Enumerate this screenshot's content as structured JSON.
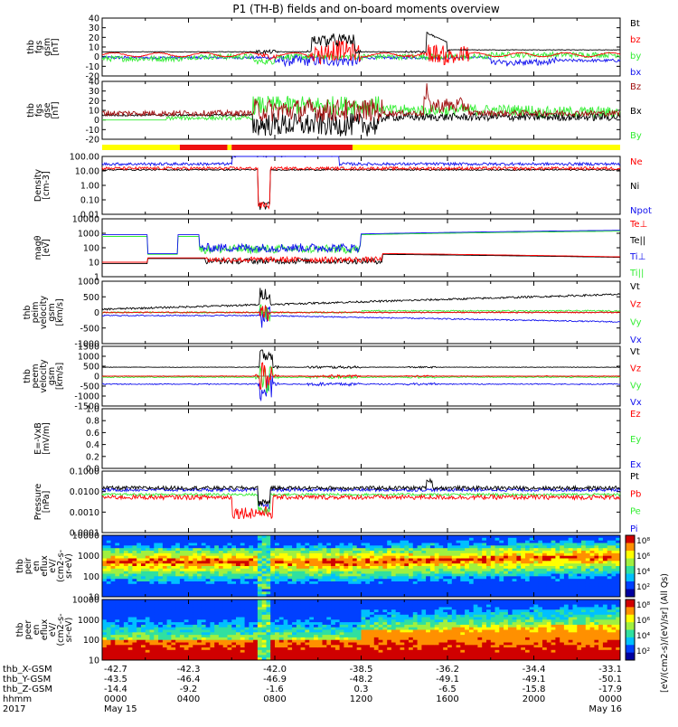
{
  "title": "P1 (TH-B) fields and on-board moments overview",
  "colors": {
    "black": "#000000",
    "red": "#ff0000",
    "green": "#33ee33",
    "blue": "#1111ee",
    "dkred": "#a01010",
    "yellow": "#ffff00",
    "bar_red": "#ee1111"
  },
  "status_bar": [
    {
      "from": 0,
      "to": 3.6,
      "color": "yellow"
    },
    {
      "from": 3.6,
      "to": 5.8,
      "color": "bar_red"
    },
    {
      "from": 5.8,
      "to": 6.0,
      "color": "yellow"
    },
    {
      "from": 6.0,
      "to": 11.6,
      "color": "bar_red"
    },
    {
      "from": 11.6,
      "to": 24,
      "color": "yellow"
    }
  ],
  "chart_data": [
    {
      "type": "line",
      "id": "fgs_gsm",
      "ylabel": [
        "thb",
        "fgs",
        "gsm",
        "[nT]"
      ],
      "yrange": [
        -20,
        40
      ],
      "ticks": [
        "40",
        "30",
        "20",
        "10",
        "0",
        "-10",
        "-20"
      ],
      "series": [
        {
          "name": "Bt",
          "color": "black"
        },
        {
          "name": "bz",
          "color": "red"
        },
        {
          "name": "by",
          "color": "green"
        },
        {
          "name": "bx",
          "color": "blue"
        }
      ]
    },
    {
      "type": "line",
      "id": "fgs_gse",
      "ylabel": [
        "thb",
        "fgs",
        "gse",
        "[nT]"
      ],
      "yrange": [
        -20,
        40
      ],
      "ticks": [
        "40",
        "30",
        "20",
        "10",
        "0",
        "-10",
        "-20"
      ],
      "series": [
        {
          "name": "Bz",
          "color": "dkred"
        },
        {
          "name": "Bx",
          "color": "black"
        },
        {
          "name": "By",
          "color": "green"
        }
      ]
    },
    {
      "type": "line",
      "id": "density",
      "ylabel": [
        "Density",
        "[cm-3]"
      ],
      "log": true,
      "yrange": [
        0.01,
        100
      ],
      "ticks": [
        "100.00",
        "10.00",
        "1.00",
        "0.10",
        "0.01"
      ],
      "series": [
        {
          "name": "Ne",
          "color": "red"
        },
        {
          "name": "Ni",
          "color": "black"
        },
        {
          "name": "Npot",
          "color": "blue"
        }
      ]
    },
    {
      "type": "line",
      "id": "temperature",
      "ylabel": [
        "magθ",
        "[eV]"
      ],
      "log": true,
      "yrange": [
        1,
        10000
      ],
      "ticks": [
        "10000",
        "1000",
        "100",
        "10",
        "1"
      ],
      "series": [
        {
          "name": "Te⊥",
          "color": "red"
        },
        {
          "name": "Te||",
          "color": "black"
        },
        {
          "name": "Ti⊥",
          "color": "blue"
        },
        {
          "name": "Ti||",
          "color": "green"
        }
      ]
    },
    {
      "type": "line",
      "id": "peir_velocity",
      "ylabel": [
        "thb",
        "peim",
        "velocity",
        "gsm",
        "[km/s]"
      ],
      "yrange": [
        -1000,
        1000
      ],
      "ticks": [
        "1000",
        "500",
        "0",
        "-500",
        "-1000"
      ],
      "series": [
        {
          "name": "Vt",
          "color": "black"
        },
        {
          "name": "Vz",
          "color": "red"
        },
        {
          "name": "Vy",
          "color": "green"
        },
        {
          "name": "Vx",
          "color": "blue"
        }
      ]
    },
    {
      "type": "line",
      "id": "peer_velocity",
      "ylabel": [
        "thb",
        "peem",
        "velocity",
        "gsm",
        "[km/s]"
      ],
      "yrange": [
        -1500,
        1500
      ],
      "ticks": [
        "1500",
        "1000",
        "500",
        "0",
        "-500",
        "-1000",
        "-1500"
      ],
      "series": [
        {
          "name": "Vt",
          "color": "black"
        },
        {
          "name": "Vz",
          "color": "red"
        },
        {
          "name": "Vy",
          "color": "green"
        },
        {
          "name": "Vx",
          "color": "blue"
        }
      ]
    },
    {
      "type": "line",
      "id": "efield",
      "ylabel": [
        "E=-VxB",
        "[mV/m]"
      ],
      "yrange": [
        0,
        1
      ],
      "ticks": [
        "1.0",
        "0.8",
        "0.6",
        "0.4",
        "0.2",
        "0.0"
      ],
      "series": [
        {
          "name": "Ez",
          "color": "red"
        },
        {
          "name": "Ey",
          "color": "green"
        },
        {
          "name": "Ex",
          "color": "blue"
        }
      ]
    },
    {
      "type": "line",
      "id": "pressure",
      "ylabel": [
        "Pressure",
        "[nPa]"
      ],
      "log": true,
      "yrange": [
        0.0001,
        1
      ],
      "ticks": [
        "0.1000",
        "0.0100",
        "0.0010",
        "0.0001"
      ],
      "series": [
        {
          "name": "Pt",
          "color": "black"
        },
        {
          "name": "Pb",
          "color": "red"
        },
        {
          "name": "Pe",
          "color": "green"
        },
        {
          "name": "Pi",
          "color": "blue"
        }
      ]
    },
    {
      "type": "heatmap",
      "id": "peir_spectrum",
      "ylabel": [
        "thb",
        "peir",
        "en",
        "eflux",
        "eV/",
        "(cm2-s-",
        "sr-eV)"
      ],
      "log": true,
      "yrange": [
        5,
        30000
      ],
      "ticks": [
        "10000",
        "1000",
        "100",
        "10"
      ]
    },
    {
      "type": "heatmap",
      "id": "peer_spectrum",
      "ylabel": [
        "thb",
        "peer",
        "en",
        "eflux",
        "eV/",
        "(cm2-s-",
        "sr-eV)"
      ],
      "log": true,
      "yrange": [
        5,
        30000
      ],
      "ticks": [
        "10000",
        "1000",
        "100",
        "10"
      ]
    }
  ],
  "colorbar": {
    "label": "[eV/(cm2-s)/(eV)/sr] (All Qs)",
    "ticks_top": [
      "10⁸",
      "10⁶",
      "10⁴",
      "10²"
    ],
    "ticks_bottom": [
      "10⁸",
      "10⁶",
      "10⁴",
      "10²"
    ]
  },
  "time_axis": {
    "row_labels": [
      "thb_X-GSM",
      "thb_Y-GSM",
      "thb_Z-GSM",
      "hhmm",
      "2017"
    ],
    "columns": [
      {
        "t": 0,
        "x": "-42.7",
        "y": "-43.5",
        "z": "-14.4",
        "hhmm": "0000",
        "date": "May 15"
      },
      {
        "t": 4,
        "x": "-42.3",
        "y": "-46.4",
        "z": "-9.2",
        "hhmm": "0400",
        "date": ""
      },
      {
        "t": 8,
        "x": "-42.0",
        "y": "-46.9",
        "z": "-1.6",
        "hhmm": "0800",
        "date": ""
      },
      {
        "t": 12,
        "x": "-38.5",
        "y": "-48.2",
        "z": "0.3",
        "hhmm": "1200",
        "date": ""
      },
      {
        "t": 16,
        "x": "-36.2",
        "y": "-49.1",
        "z": "-6.5",
        "hhmm": "1600",
        "date": ""
      },
      {
        "t": 20,
        "x": "-34.4",
        "y": "-49.1",
        "z": "-15.8",
        "hhmm": "2000",
        "date": ""
      },
      {
        "t": 24,
        "x": "-33.1",
        "y": "-50.1",
        "z": "-17.9",
        "hhmm": "0000",
        "date": "May 16"
      }
    ]
  }
}
